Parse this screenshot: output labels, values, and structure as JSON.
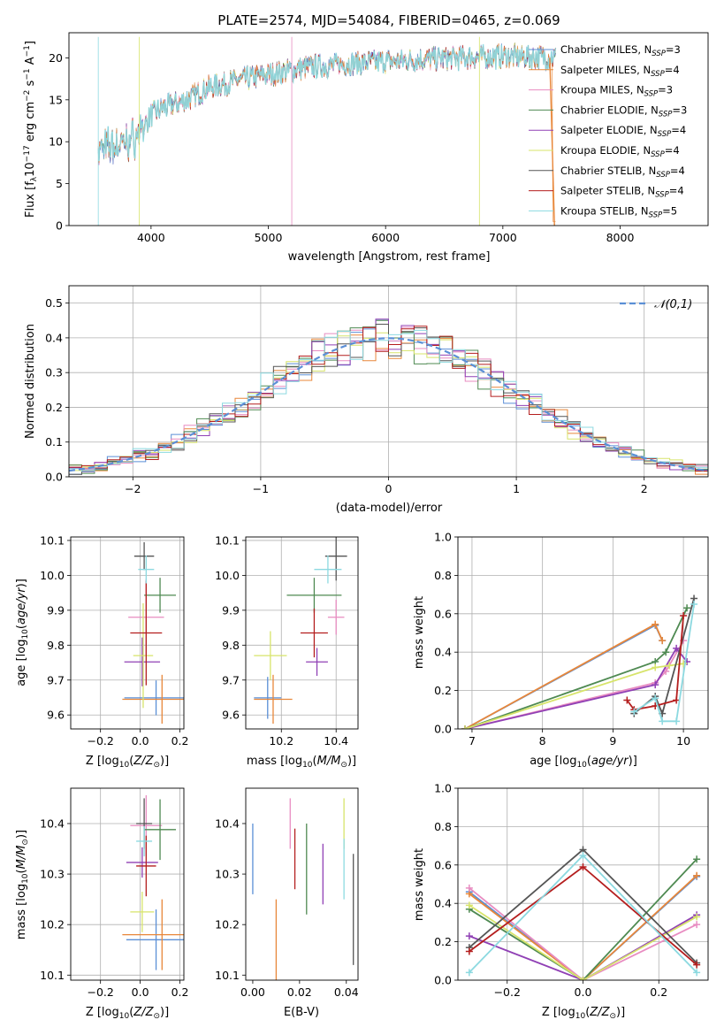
{
  "figure_title": "PLATE=2574, MJD=54084, FIBERID=0465, z=0.069",
  "colors": [
    "#5b8fd6",
    "#e8873a",
    "#e88cc1",
    "#4f8a52",
    "#9040b5",
    "#d7e46a",
    "#555555",
    "#b41e1e",
    "#8cd9e0"
  ],
  "chart_data": [
    {
      "type": "line",
      "id": "spectrum",
      "xlabel": "wavelength [Angstrom, rest frame]",
      "ylabel": "Flux [f_λ 10^-17 erg cm^-2 s^-1 A^-1]",
      "xlim": [
        3300,
        8750
      ],
      "ylim": [
        0,
        23
      ],
      "xticks": [
        4000,
        5000,
        6000,
        7000,
        8000
      ],
      "yticks": [
        0,
        5,
        10,
        15,
        20
      ],
      "grid": false,
      "legend_position": "upper right",
      "series": [
        {
          "name": "Chabrier MILES, N_SSP=3",
          "nssp": "3",
          "model": "Chabrier MILES"
        },
        {
          "name": "Salpeter MILES, N_SSP=4",
          "nssp": "4",
          "model": "Salpeter MILES"
        },
        {
          "name": "Kroupa MILES, N_SSP=3",
          "nssp": "3",
          "model": "Kroupa MILES"
        },
        {
          "name": "Chabrier ELODIE, N_SSP=3",
          "nssp": "3",
          "model": "Chabrier ELODIE"
        },
        {
          "name": "Salpeter ELODIE, N_SSP=4",
          "nssp": "4",
          "model": "Salpeter ELODIE"
        },
        {
          "name": "Kroupa ELODIE, N_SSP=4",
          "nssp": "4",
          "model": "Kroupa ELODIE"
        },
        {
          "name": "Chabrier STELIB, N_SSP=4",
          "nssp": "4",
          "model": "Chabrier STELIB"
        },
        {
          "name": "Salpeter STELIB, N_SSP=4",
          "nssp": "4",
          "model": "Salpeter STELIB"
        },
        {
          "name": "Kroupa STELIB, N_SSP=5",
          "nssp": "5",
          "model": "Kroupa STELIB"
        }
      ],
      "continuum": {
        "x": [
          3550,
          3700,
          3800,
          3900,
          4000,
          4100,
          4300,
          4500,
          4800,
          5000,
          5300,
          5600,
          6000,
          6300,
          6600,
          7000,
          7300,
          7450
        ],
        "y": [
          9.0,
          9.5,
          10.0,
          11.0,
          13.2,
          14.0,
          15.0,
          16.5,
          17.5,
          18.0,
          18.8,
          19.2,
          19.6,
          19.8,
          20.0,
          20.2,
          20.1,
          20.0
        ]
      }
    },
    {
      "type": "histogram",
      "id": "residuals",
      "xlabel": "(data-model)/error",
      "ylabel": "Normed distribution",
      "xlim": [
        -2.5,
        2.5
      ],
      "ylim": [
        0,
        0.55
      ],
      "xticks": [
        -2,
        -1,
        0,
        1,
        2
      ],
      "yticks": [
        0.0,
        0.1,
        0.2,
        0.3,
        0.4,
        0.5
      ],
      "grid": true,
      "legend": "𝒩(0,1)",
      "legend_position": "upper right",
      "reference_curve": "standard normal pdf",
      "bin_width": 0.1
    },
    {
      "type": "scatter",
      "id": "age-vs-Z",
      "xlabel": "Z [log10(Z/Z⊙)]",
      "ylabel": "age [log10(age/yr)]",
      "xlim": [
        -0.35,
        0.22
      ],
      "ylim": [
        9.56,
        10.11
      ],
      "xticks": [
        -0.2,
        0.0,
        0.2
      ],
      "yticks": [
        9.6,
        9.7,
        9.8,
        9.9,
        10.0,
        10.1
      ],
      "grid": true,
      "points": [
        {
          "x": 0.08,
          "xerr": 0.16,
          "y": 9.649,
          "yerr": 0.05
        },
        {
          "x": 0.11,
          "xerr": 0.2,
          "y": 9.645,
          "yerr": 0.07
        },
        {
          "x": 0.03,
          "xerr": 0.09,
          "y": 9.88,
          "yerr": 0.11
        },
        {
          "x": 0.1,
          "xerr": 0.08,
          "y": 9.943,
          "yerr": 0.05
        },
        {
          "x": 0.01,
          "xerr": 0.09,
          "y": 9.752,
          "yerr": 0.07
        },
        {
          "x": 0.015,
          "xerr": 0.05,
          "y": 9.77,
          "yerr": 0.15
        },
        {
          "x": 0.02,
          "xerr": 0.05,
          "y": 10.055,
          "yerr": 0.04
        },
        {
          "x": 0.03,
          "xerr": 0.08,
          "y": 9.835,
          "yerr": 0.15
        },
        {
          "x": 0.03,
          "xerr": 0.04,
          "y": 10.017,
          "yerr": 0.04
        }
      ]
    },
    {
      "type": "scatter",
      "id": "age-vs-mass",
      "xlabel": "mass [log10(M/M⊙)]",
      "ylabel": "",
      "xlim": [
        10.07,
        10.48
      ],
      "ylim": [
        9.56,
        10.11
      ],
      "xticks": [
        10.2,
        10.4
      ],
      "yticks": [
        9.6,
        9.7,
        9.8,
        9.9,
        10.0,
        10.1
      ],
      "grid": true,
      "points": [
        {
          "x": 10.15,
          "xerr": 0.05,
          "y": 9.649,
          "yerr": 0.06
        },
        {
          "x": 10.17,
          "xerr": 0.07,
          "y": 9.645,
          "yerr": 0.07
        },
        {
          "x": 10.4,
          "xerr": 0.03,
          "y": 9.88,
          "yerr": 0.05
        },
        {
          "x": 10.32,
          "xerr": 0.1,
          "y": 9.943,
          "yerr": 0.05
        },
        {
          "x": 10.33,
          "xerr": 0.04,
          "y": 9.752,
          "yerr": 0.04
        },
        {
          "x": 10.16,
          "xerr": 0.06,
          "y": 9.77,
          "yerr": 0.07
        },
        {
          "x": 10.4,
          "xerr": 0.04,
          "y": 10.055,
          "yerr": 0.07
        },
        {
          "x": 10.32,
          "xerr": 0.05,
          "y": 9.835,
          "yerr": 0.07
        },
        {
          "x": 10.37,
          "xerr": 0.05,
          "y": 10.017,
          "yerr": 0.04
        }
      ]
    },
    {
      "type": "line",
      "id": "weight-vs-age",
      "xlabel": "age [log10(age/yr)]",
      "ylabel": "mass weight",
      "xlim": [
        6.8,
        10.35
      ],
      "ylim": [
        0,
        1.0
      ],
      "xticks": [
        7,
        8,
        9,
        10
      ],
      "yticks": [
        0.0,
        0.2,
        0.4,
        0.6,
        0.8,
        1.0
      ],
      "grid": true,
      "series": [
        {
          "x": [
            6.9,
            9.6,
            9.7
          ],
          "y": [
            0.0,
            0.54,
            0.46
          ]
        },
        {
          "x": [
            6.9,
            9.6,
            9.7
          ],
          "y": [
            0.0,
            0.545,
            0.46
          ]
        },
        {
          "x": [
            6.9,
            9.6,
            9.75,
            10.0
          ],
          "y": [
            0.0,
            0.24,
            0.3,
            0.46
          ]
        },
        {
          "x": [
            6.9,
            9.6,
            9.75,
            10.05
          ],
          "y": [
            0.0,
            0.35,
            0.4,
            0.63
          ]
        },
        {
          "x": [
            6.9,
            9.6,
            9.9,
            10.05
          ],
          "y": [
            0.0,
            0.23,
            0.42,
            0.35
          ]
        },
        {
          "x": [
            6.9,
            9.6,
            9.8,
            10.0
          ],
          "y": [
            0.0,
            0.32,
            0.33,
            0.34
          ]
        },
        {
          "x": [
            9.3,
            9.6,
            9.7,
            10.15
          ],
          "y": [
            0.08,
            0.17,
            0.08,
            0.68
          ]
        },
        {
          "x": [
            9.2,
            9.3,
            9.6,
            9.9,
            10.0
          ],
          "y": [
            0.15,
            0.1,
            0.12,
            0.15,
            0.59
          ]
        },
        {
          "x": [
            9.3,
            9.6,
            9.7,
            9.9,
            10.15
          ],
          "y": [
            0.09,
            0.16,
            0.04,
            0.04,
            0.65
          ]
        }
      ]
    },
    {
      "type": "scatter",
      "id": "mass-vs-Z",
      "xlabel": "Z [log10(Z/Z⊙)]",
      "ylabel": "mass [log10(M/M⊙)]",
      "xlim": [
        -0.35,
        0.22
      ],
      "ylim": [
        10.09,
        10.47
      ],
      "xticks": [
        -0.2,
        0.0,
        0.2
      ],
      "yticks": [
        10.1,
        10.2,
        10.3,
        10.4
      ],
      "grid": true,
      "points": [
        {
          "x": 0.08,
          "xerr": 0.15,
          "y": 10.17,
          "yerr": 0.06
        },
        {
          "x": 0.11,
          "xerr": 0.2,
          "y": 10.18,
          "yerr": 0.07
        },
        {
          "x": 0.03,
          "xerr": 0.08,
          "y": 10.396,
          "yerr": 0.06
        },
        {
          "x": 0.1,
          "xerr": 0.08,
          "y": 10.388,
          "yerr": 0.06
        },
        {
          "x": 0.01,
          "xerr": 0.08,
          "y": 10.323,
          "yerr": 0.03
        },
        {
          "x": 0.01,
          "xerr": 0.06,
          "y": 10.225,
          "yerr": 0.04
        },
        {
          "x": 0.02,
          "xerr": 0.04,
          "y": 10.4,
          "yerr": 0.05
        },
        {
          "x": 0.03,
          "xerr": 0.05,
          "y": 10.316,
          "yerr": 0.06
        },
        {
          "x": 0.02,
          "xerr": 0.04,
          "y": 10.365,
          "yerr": 0.03
        }
      ]
    },
    {
      "type": "scatter",
      "id": "mass-vs-EBV",
      "xlabel": "E(B-V)",
      "ylabel": "",
      "xlim": [
        -0.003,
        0.045
      ],
      "ylim": [
        10.09,
        10.47
      ],
      "xticks": [
        0.0,
        0.02,
        0.04
      ],
      "yticks": [
        10.1,
        10.2,
        10.3,
        10.4
      ],
      "grid": false,
      "points": [
        {
          "x": 0.0,
          "y": 10.33,
          "yerr": 0.07
        },
        {
          "x": 0.01,
          "y": 10.16,
          "yerr": 0.09
        },
        {
          "x": 0.016,
          "y": 10.4,
          "yerr": 0.05
        },
        {
          "x": 0.023,
          "y": 10.31,
          "yerr": 0.09
        },
        {
          "x": 0.03,
          "y": 10.3,
          "yerr": 0.06
        },
        {
          "x": 0.039,
          "y": 10.4,
          "yerr": 0.05
        },
        {
          "x": 0.043,
          "y": 10.23,
          "yerr": 0.11
        },
        {
          "x": 0.018,
          "y": 10.33,
          "yerr": 0.06
        },
        {
          "x": 0.039,
          "y": 10.31,
          "yerr": 0.06
        }
      ]
    },
    {
      "type": "line",
      "id": "weight-vs-Z",
      "xlabel": "Z [log10(Z/Z⊙)]",
      "ylabel": "mass weight",
      "xlim": [
        -0.33,
        0.33
      ],
      "ylim": [
        0,
        1.0
      ],
      "xticks": [
        -0.2,
        0.0,
        0.2
      ],
      "yticks": [
        0.0,
        0.2,
        0.4,
        0.6,
        0.8,
        1.0
      ],
      "grid": true,
      "series": [
        {
          "x": [
            -0.3,
            0.0,
            0.3
          ],
          "y": [
            0.46,
            0.0,
            0.54
          ]
        },
        {
          "x": [
            -0.3,
            0.0,
            0.3
          ],
          "y": [
            0.45,
            0.0,
            0.545
          ]
        },
        {
          "x": [
            -0.3,
            0.0,
            0.3
          ],
          "y": [
            0.48,
            0.0,
            0.29
          ]
        },
        {
          "x": [
            -0.3,
            0.0,
            0.3
          ],
          "y": [
            0.37,
            0.0,
            0.63
          ]
        },
        {
          "x": [
            -0.3,
            0.0,
            0.3
          ],
          "y": [
            0.23,
            0.0,
            0.34
          ]
        },
        {
          "x": [
            -0.3,
            0.0,
            0.3
          ],
          "y": [
            0.39,
            0.0,
            0.33
          ]
        },
        {
          "x": [
            -0.3,
            0.0,
            0.3
          ],
          "y": [
            0.17,
            0.68,
            0.09
          ]
        },
        {
          "x": [
            -0.3,
            0.0,
            0.3
          ],
          "y": [
            0.15,
            0.59,
            0.08
          ]
        },
        {
          "x": [
            -0.3,
            0.0,
            0.3
          ],
          "y": [
            0.04,
            0.65,
            0.04
          ]
        }
      ]
    }
  ]
}
